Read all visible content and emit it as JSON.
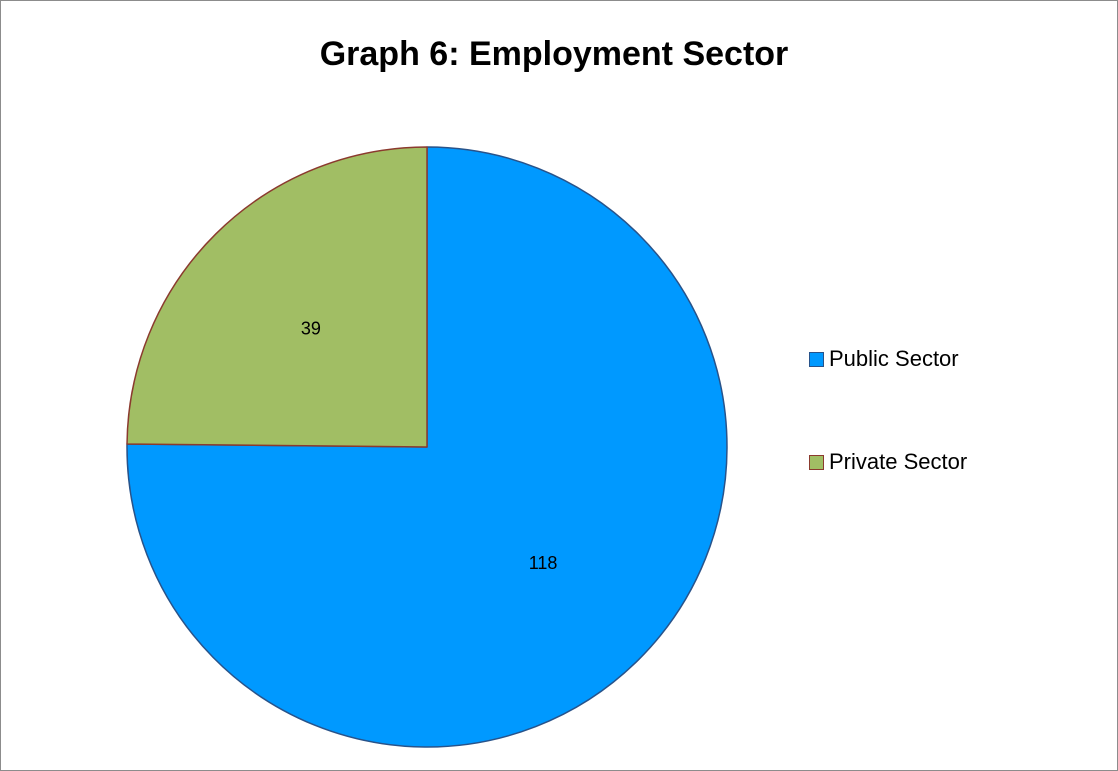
{
  "chart_data": {
    "type": "pie",
    "title": "Graph 6: Employment Sector",
    "categories": [
      "Public Sector",
      "Private Sector"
    ],
    "values": [
      118,
      39
    ],
    "colors": [
      "#0099ff",
      "#a1be64"
    ],
    "slice_border_colors": [
      "#28538a",
      "#8b3a2e"
    ],
    "data_labels": [
      "118",
      "39"
    ],
    "legend_position": "right",
    "start_angle_deg": 0,
    "direction": "clockwise"
  }
}
